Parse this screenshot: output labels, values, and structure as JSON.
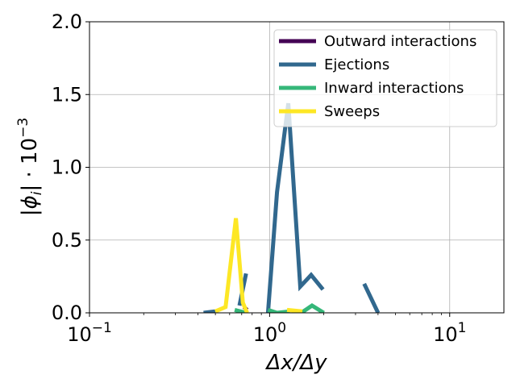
{
  "chart_data": {
    "type": "line",
    "title": "",
    "xlabel": "Δx/Δy",
    "ylabel": "|ϕ_i| · 10^−3",
    "x_scale": "log",
    "xlim": [
      0.1,
      20
    ],
    "ylim": [
      0,
      2.0
    ],
    "grid": true,
    "legend_placement": "top-right",
    "x_ticks": [
      {
        "value": 0.1,
        "base": "10",
        "exp": "−1"
      },
      {
        "value": 1,
        "base": "10",
        "exp": "0"
      },
      {
        "value": 10,
        "base": "10",
        "exp": "1"
      }
    ],
    "y_ticks": [
      {
        "value": 0,
        "label": "0.0"
      },
      {
        "value": 0.5,
        "label": "0.5"
      },
      {
        "value": 1.0,
        "label": "1.0"
      },
      {
        "value": 1.5,
        "label": "1.5"
      },
      {
        "value": 2.0,
        "label": "2.0"
      }
    ],
    "series": [
      {
        "name": "Outward interactions",
        "color": "#440154",
        "segments": [
          [
            [
              0.72,
              0.04
            ],
            [
              0.75,
              0.02
            ]
          ]
        ]
      },
      {
        "name": "Ejections",
        "color": "#31688e",
        "segments": [
          [
            [
              0.43,
              0.0
            ],
            [
              0.5,
              0.01
            ]
          ],
          [
            [
              0.68,
              0.05
            ],
            [
              0.74,
              0.27
            ]
          ],
          [
            [
              0.98,
              0.0
            ],
            [
              1.1,
              0.83
            ],
            [
              1.27,
              1.44
            ],
            [
              1.48,
              0.18
            ],
            [
              1.7,
              0.26
            ],
            [
              1.98,
              0.16
            ]
          ],
          [
            [
              3.35,
              0.2
            ],
            [
              4.0,
              0.0
            ]
          ]
        ]
      },
      {
        "name": "Inward interactions",
        "color": "#35b779",
        "segments": [
          [
            [
              0.64,
              0.02
            ],
            [
              0.74,
              0.0
            ]
          ],
          [
            [
              0.98,
              0.02
            ],
            [
              1.1,
              0.0
            ],
            [
              1.3,
              0.01
            ]
          ],
          [
            [
              1.5,
              0.0
            ],
            [
              1.72,
              0.05
            ],
            [
              2.0,
              0.0
            ]
          ]
        ]
      },
      {
        "name": "Sweeps",
        "color": "#fde725",
        "segments": [
          [
            [
              0.5,
              0.01
            ],
            [
              0.57,
              0.04
            ],
            [
              0.65,
              0.65
            ],
            [
              0.71,
              0.07
            ],
            [
              0.75,
              0.0
            ]
          ],
          [
            [
              1.25,
              0.02
            ],
            [
              1.52,
              0.01
            ]
          ]
        ]
      }
    ]
  }
}
